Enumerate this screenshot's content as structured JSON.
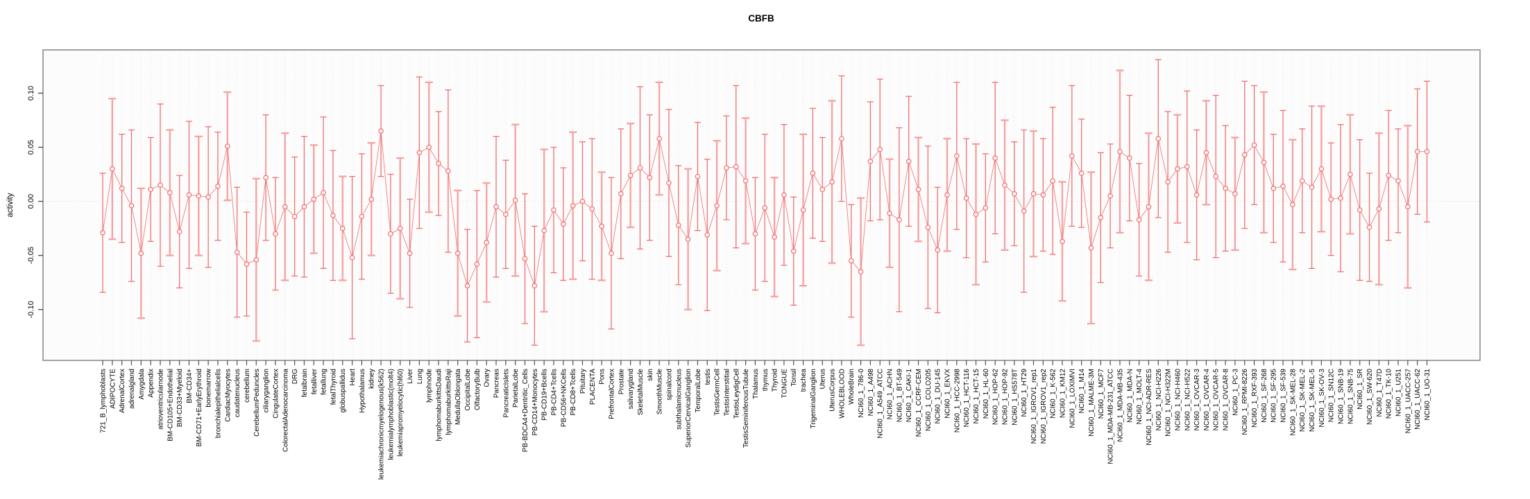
{
  "chart_data": {
    "type": "line",
    "title": "CBFB",
    "xlabel": "",
    "ylabel": "activity",
    "yticks": [
      -0.1,
      -0.05,
      0.0,
      0.05,
      0.1
    ],
    "ylim": [
      -0.147,
      0.14
    ],
    "grid": "vertical dashed gridline per category, dotted horizontal line at y=0",
    "legend": "none",
    "marker": "open-circle with error bars, points connected by line",
    "categories": [
      "721_B_lymphoblasts",
      "ADIPOCYTE",
      "AdrenalCortex",
      "adrenalgland",
      "Amygdala",
      "Appendix",
      "atrioventricularnode",
      "BM-CD105+Endothelial",
      "BM-CD33+Myeloid",
      "BM-CD34+",
      "BM-CD71+EarlyErythroid",
      "bonemarrow",
      "bronchialepithelialcells",
      "CardiacMyocytes",
      "caudatenucleus",
      "cerebellum",
      "CerebellumPeduncles",
      "ciliaryganglion",
      "CingulateCortex",
      "ColorectalAdenocarcinoma",
      "DRG",
      "fetalbrain",
      "fetalliver",
      "fetallung",
      "fetalThyroid",
      "globuspallidus",
      "Heart",
      "Hypothalamus",
      "kidney",
      "leukemiachronicmyelogenous(k562)",
      "leukemialymphoblastic(molt4)",
      "leukemiapromyelocytic(hl60)",
      "Liver",
      "Lung",
      "lymphnode",
      "lymphomaburkittsDaudi",
      "lymphomaburkittsRaji",
      "MedullaOblongata",
      "OccipitalLobe",
      "OlfactoryBulb",
      "Ovary",
      "Pancreas",
      "PancreaticIslets",
      "ParietalLobe",
      "PB-BDCA4+Dentritic_Cells",
      "PB-CD14+Monocytes",
      "PB-CD19+Bcells",
      "PB-CD4+Tcells",
      "PB-CD56+NKCells",
      "PB-CD8+Tcells",
      "Pituitary",
      "PLACENTA",
      "Pons",
      "PrefrontalCortex",
      "Prostate",
      "salivarygland",
      "SkeletalMuscle",
      "skin",
      "SmoothMuscle",
      "spinalcord",
      "subthalamicnucleus",
      "SuperiorCervicalGanglion",
      "TemporalLobe",
      "testis",
      "TestisGermCell",
      "TestisInterstitial",
      "TestisLeydigCell",
      "TestisSeminiferousTubule",
      "Thalamus",
      "thymus",
      "Thyroid",
      "TONGUE",
      "Tonsil",
      "trachea",
      "TrigeminalGanglion",
      "Uterus",
      "UterusCorpus",
      "WHOLEBLOOD",
      "WholeBrain",
      "NCI60_1_786-0",
      "NCI60_1_A498",
      "NCI60_1_A549_ATCC",
      "NCI60_1_ACHN",
      "NCI60_1_BT-549",
      "NCI60_1_CAKI-1",
      "NCI60_1_CCRF-CEM",
      "NCI60_1_COLO205",
      "NCI60_1_DU-145",
      "NCI60_1_EKVX",
      "NCI60_1_HCC-2998",
      "NCI60_1_HCT-116",
      "NCI60_1_HCT-15",
      "NCI60_1_HL-60",
      "NCI60_1_HOP-62",
      "NCI60_1_HOP-92",
      "NCI60_1_HS578T",
      "NCI60_1_HT29",
      "NCI60_1_IGROV1_rep1",
      "NCI60_1_IGROV1_rep2",
      "NCI60_1_K-562",
      "NCI60_1_KM12",
      "NCI60_1_LOXIMVI",
      "NCI60_1_M14",
      "NCI60_1_MALME-3M",
      "NCI60_1_MCF7",
      "NCI60_1_MDA-MB-231_ATCC",
      "NCI60_1_MDA-MB-435",
      "NCI60_1_MDA-N",
      "NCI60_1_MOLT-4",
      "NCI60_1_NCI-ADR-RES",
      "NCI60_1_NCI-H226",
      "NCI60_1_NCI-H322M",
      "NCI60_1_NCI-H460",
      "NCI60_1_NCI-H522",
      "NCI60_1_OVCAR-3",
      "NCI60_1_OVCAR-4",
      "NCI60_1_OVCAR-5",
      "NCI60_1_OVCAR-8",
      "NCI60_1_PC-3",
      "NCI60_1_RPMI-8226",
      "NCI60_1_RXF-393",
      "NCI60_1_SF-268",
      "NCI60_1_SF-295",
      "NCI60_1_SF-539",
      "NCI60_1_SK-MEL-28",
      "NCI60_1_SK-MEL-2",
      "NCI60_1_SK-MEL-5",
      "NCI60_1_SK-OV-3",
      "NCI60_1_SN12C",
      "NCI60_1_SNB-19",
      "NCI60_1_SNB-75",
      "NCI60_1_SR",
      "NCI60_1_SW-620",
      "NCI60_1_T47D",
      "NCI60_1_TK-10",
      "NCI60_1_U251",
      "NCI60_1_UACC-257",
      "NCI60_1_UACC-62",
      "NCI60_1_UO-31"
    ],
    "values": [
      -0.029,
      0.03,
      0.012,
      -0.004,
      -0.048,
      0.011,
      0.015,
      0.008,
      -0.028,
      0.006,
      0.005,
      0.004,
      0.014,
      0.051,
      -0.047,
      -0.058,
      -0.054,
      0.022,
      -0.03,
      -0.005,
      -0.014,
      -0.005,
      0.002,
      0.008,
      -0.013,
      -0.025,
      -0.052,
      -0.014,
      0.002,
      0.065,
      -0.03,
      -0.025,
      -0.048,
      0.045,
      0.05,
      0.035,
      0.028,
      -0.048,
      -0.078,
      -0.058,
      -0.038,
      -0.005,
      -0.012,
      0.001,
      -0.053,
      -0.078,
      -0.027,
      -0.008,
      -0.021,
      -0.004,
      0.0,
      -0.007,
      -0.023,
      -0.048,
      0.007,
      0.024,
      0.031,
      0.022,
      0.058,
      0.017,
      -0.022,
      -0.035,
      0.023,
      -0.031,
      -0.004,
      0.031,
      0.032,
      0.019,
      -0.03,
      -0.006,
      -0.033,
      0.006,
      -0.046,
      -0.008,
      0.026,
      0.011,
      0.018,
      0.058,
      -0.055,
      -0.065,
      0.037,
      0.048,
      -0.011,
      -0.017,
      0.037,
      0.011,
      -0.024,
      -0.045,
      0.006,
      0.042,
      0.003,
      -0.012,
      -0.006,
      0.04,
      0.015,
      0.007,
      -0.009,
      0.007,
      0.006,
      0.019,
      -0.037,
      0.042,
      0.026,
      -0.043,
      -0.015,
      0.005,
      0.046,
      0.04,
      -0.017,
      -0.005,
      0.058,
      0.018,
      0.03,
      0.032,
      0.006,
      0.045,
      0.023,
      0.012,
      0.007,
      0.043,
      0.052,
      0.036,
      0.012,
      0.014,
      -0.003,
      0.019,
      0.013,
      0.03,
      0.002,
      0.003,
      0.025,
      -0.008,
      -0.024,
      -0.007,
      0.024,
      0.019,
      -0.005,
      0.046,
      0.046
    ],
    "errors": [
      0.055,
      0.065,
      0.05,
      0.07,
      0.06,
      0.048,
      0.075,
      0.058,
      0.052,
      0.068,
      0.055,
      0.065,
      0.05,
      0.05,
      0.06,
      0.048,
      0.075,
      0.058,
      0.052,
      0.068,
      0.055,
      0.065,
      0.05,
      0.07,
      0.06,
      0.048,
      0.075,
      0.058,
      0.052,
      0.042,
      0.055,
      0.065,
      0.05,
      0.07,
      0.06,
      0.048,
      0.075,
      0.058,
      0.052,
      0.068,
      0.055,
      0.065,
      0.05,
      0.07,
      0.06,
      0.055,
      0.075,
      0.058,
      0.052,
      0.068,
      0.055,
      0.065,
      0.05,
      0.07,
      0.06,
      0.048,
      0.075,
      0.058,
      0.052,
      0.068,
      0.055,
      0.065,
      0.05,
      0.07,
      0.06,
      0.048,
      0.075,
      0.058,
      0.052,
      0.068,
      0.055,
      0.065,
      0.05,
      0.07,
      0.06,
      0.048,
      0.075,
      0.058,
      0.052,
      0.068,
      0.055,
      0.065,
      0.05,
      0.085,
      0.06,
      0.048,
      0.075,
      0.058,
      0.052,
      0.068,
      0.055,
      0.065,
      0.05,
      0.07,
      0.06,
      0.048,
      0.075,
      0.058,
      0.052,
      0.068,
      0.055,
      0.065,
      0.05,
      0.07,
      0.06,
      0.048,
      0.075,
      0.058,
      0.052,
      0.068,
      0.073,
      0.065,
      0.05,
      0.07,
      0.06,
      0.048,
      0.075,
      0.058,
      0.052,
      0.068,
      0.055,
      0.065,
      0.05,
      0.07,
      0.06,
      0.048,
      0.075,
      0.058,
      0.052,
      0.068,
      0.055,
      0.065,
      0.05,
      0.07,
      0.06,
      0.048,
      0.075,
      0.058,
      0.065
    ],
    "colors": {
      "series": "#f26e6e",
      "series_light": "#f7a3a3",
      "gridline": "#e7e7e7",
      "zero_line": "#d8d8d8",
      "box_border": "#8c8c8c",
      "tick": "#4d4d4d",
      "text": "#000000",
      "plot_background": "#fcfcfc"
    }
  }
}
